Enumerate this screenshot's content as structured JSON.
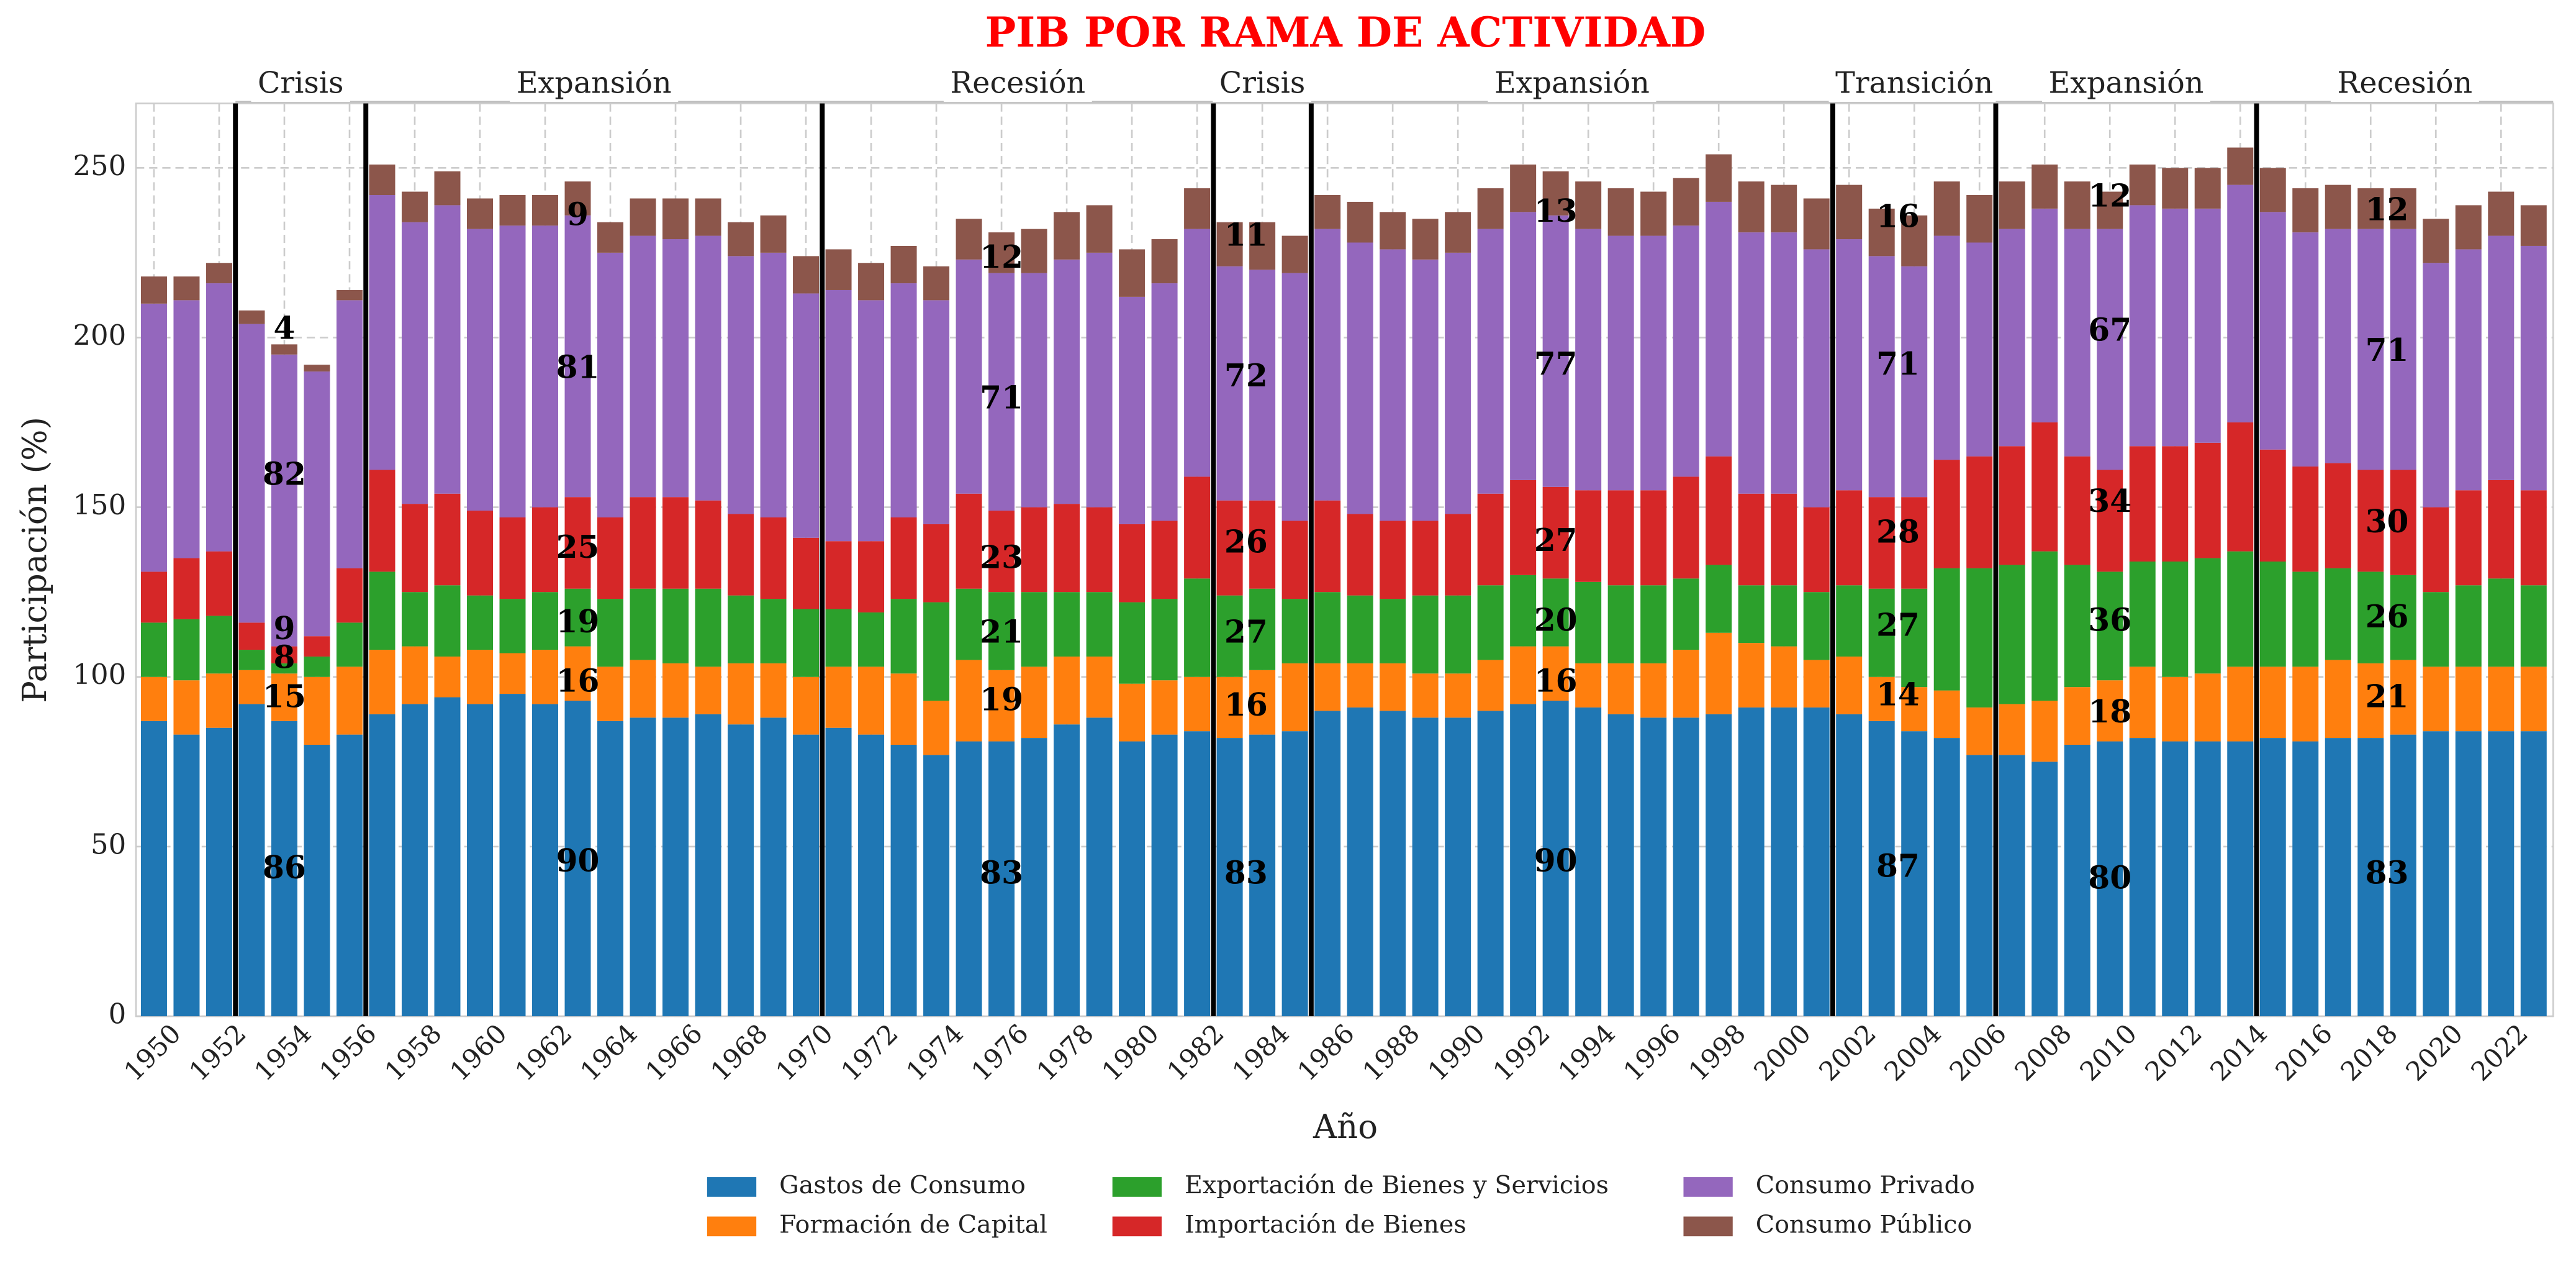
{
  "chart_data": {
    "type": "stacked_bar",
    "title": "PIB POR RAMA DE ACTIVIDAD",
    "x_label": "Año",
    "y_label": "Participación (%)",
    "x": [
      1950,
      1951,
      1952,
      1953,
      1954,
      1955,
      1956,
      1957,
      1958,
      1959,
      1960,
      1961,
      1962,
      1963,
      1964,
      1965,
      1966,
      1967,
      1968,
      1969,
      1970,
      1971,
      1972,
      1973,
      1974,
      1975,
      1976,
      1977,
      1978,
      1979,
      1980,
      1981,
      1982,
      1983,
      1984,
      1985,
      1986,
      1987,
      1988,
      1989,
      1990,
      1991,
      1992,
      1993,
      1994,
      1995,
      1996,
      1997,
      1998,
      1999,
      2000,
      2001,
      2002,
      2003,
      2004,
      2005,
      2006,
      2007,
      2008,
      2009,
      2010,
      2011,
      2012,
      2013,
      2014,
      2015,
      2016,
      2017,
      2018,
      2019,
      2020,
      2021,
      2022,
      2023
    ],
    "xlim": [
      1949.45,
      2023.6
    ],
    "xticks": [
      1950,
      1952,
      1954,
      1956,
      1958,
      1960,
      1962,
      1964,
      1966,
      1968,
      1970,
      1972,
      1974,
      1976,
      1978,
      1980,
      1982,
      1984,
      1986,
      1988,
      1990,
      1992,
      1994,
      1996,
      1998,
      2000,
      2002,
      2004,
      2006,
      2008,
      2010,
      2012,
      2014,
      2016,
      2018,
      2020,
      2022
    ],
    "ylim": [
      0,
      269
    ],
    "yticks": [
      0,
      50,
      100,
      150,
      200,
      250
    ],
    "grid": true,
    "legend": "lower center",
    "series": [
      {
        "name": "Gastos de Consumo",
        "color": "#1f77b4",
        "values": [
          87,
          83,
          85,
          92,
          87,
          80,
          83,
          89,
          92,
          94,
          92,
          95,
          92,
          93,
          87,
          88,
          88,
          89,
          86,
          88,
          83,
          85,
          83,
          80,
          77,
          81,
          81,
          82,
          86,
          88,
          81,
          83,
          84,
          82,
          83,
          84,
          90,
          91,
          90,
          88,
          88,
          90,
          92,
          93,
          91,
          89,
          88,
          88,
          89,
          91,
          91,
          91,
          89,
          87,
          84,
          82,
          77,
          77,
          75,
          80,
          81,
          82,
          81,
          81,
          81,
          82,
          81,
          82,
          82,
          83,
          84,
          84,
          84,
          84
        ]
      },
      {
        "name": "Formación de Capital",
        "color": "#ff7f0e",
        "values": [
          13,
          16,
          16,
          10,
          14,
          20,
          20,
          19,
          17,
          12,
          16,
          12,
          16,
          16,
          16,
          17,
          16,
          14,
          18,
          16,
          17,
          18,
          20,
          21,
          16,
          24,
          21,
          21,
          20,
          18,
          17,
          16,
          16,
          18,
          19,
          20,
          14,
          13,
          14,
          13,
          13,
          15,
          17,
          16,
          13,
          15,
          16,
          20,
          24,
          19,
          18,
          14,
          17,
          13,
          13,
          14,
          14,
          15,
          18,
          17,
          18,
          21,
          19,
          20,
          22,
          21,
          22,
          23,
          22,
          22,
          19,
          19,
          19,
          19
        ]
      },
      {
        "name": "Exportación de Bienes y Servicios",
        "color": "#2ca02c",
        "values": [
          16,
          18,
          17,
          6,
          3,
          6,
          13,
          23,
          16,
          21,
          16,
          16,
          17,
          17,
          20,
          21,
          22,
          23,
          20,
          19,
          20,
          17,
          16,
          22,
          29,
          21,
          23,
          22,
          19,
          19,
          24,
          24,
          29,
          24,
          24,
          19,
          21,
          20,
          19,
          23,
          23,
          22,
          21,
          20,
          24,
          23,
          23,
          21,
          20,
          17,
          18,
          20,
          21,
          26,
          29,
          36,
          41,
          41,
          44,
          36,
          32,
          31,
          34,
          34,
          34,
          31,
          28,
          27,
          27,
          25,
          22,
          24,
          26,
          24
        ]
      },
      {
        "name": "Importación de Bienes",
        "color": "#d62728",
        "values": [
          15,
          18,
          19,
          8,
          5,
          6,
          16,
          30,
          26,
          27,
          25,
          24,
          25,
          27,
          24,
          27,
          27,
          26,
          24,
          24,
          21,
          20,
          21,
          24,
          23,
          28,
          24,
          25,
          26,
          25,
          23,
          23,
          30,
          28,
          26,
          23,
          27,
          24,
          23,
          22,
          24,
          27,
          28,
          27,
          27,
          28,
          28,
          30,
          32,
          27,
          27,
          25,
          28,
          27,
          27,
          32,
          33,
          35,
          38,
          32,
          30,
          34,
          34,
          34,
          38,
          33,
          31,
          31,
          30,
          31,
          25,
          28,
          29,
          28
        ]
      },
      {
        "name": "Consumo Privado",
        "color": "#9467bd",
        "values": [
          79,
          76,
          79,
          88,
          86,
          78,
          79,
          81,
          83,
          85,
          83,
          86,
          83,
          83,
          78,
          77,
          76,
          78,
          76,
          78,
          72,
          74,
          71,
          69,
          66,
          69,
          70,
          69,
          72,
          75,
          67,
          70,
          73,
          69,
          68,
          73,
          80,
          80,
          80,
          77,
          77,
          78,
          79,
          80,
          77,
          75,
          75,
          74,
          75,
          77,
          77,
          76,
          74,
          71,
          68,
          66,
          63,
          64,
          63,
          67,
          71,
          71,
          70,
          69,
          70,
          70,
          69,
          69,
          71,
          71,
          72,
          71,
          72,
          72
        ]
      },
      {
        "name": "Consumo Público",
        "color": "#8c564b",
        "values": [
          8,
          7,
          6,
          4,
          3,
          2,
          3,
          9,
          9,
          10,
          9,
          9,
          9,
          10,
          9,
          11,
          12,
          11,
          10,
          11,
          11,
          12,
          11,
          11,
          10,
          12,
          12,
          13,
          14,
          14,
          14,
          13,
          12,
          13,
          14,
          11,
          10,
          12,
          11,
          12,
          12,
          12,
          14,
          13,
          14,
          14,
          13,
          14,
          14,
          15,
          14,
          15,
          16,
          14,
          15,
          16,
          14,
          14,
          13,
          14,
          11,
          12,
          12,
          12,
          11,
          13,
          13,
          13,
          12,
          12,
          13,
          13,
          13,
          12
        ]
      }
    ],
    "periods": [
      {
        "label": "Crisis",
        "start": 1952,
        "end": 1956,
        "values": [
          86,
          15,
          8,
          9,
          82,
          4
        ]
      },
      {
        "label": "Expansión",
        "start": 1956,
        "end": 1970,
        "values": [
          90,
          16,
          19,
          25,
          81,
          9
        ]
      },
      {
        "label": "Recesión",
        "start": 1970,
        "end": 1982,
        "values": [
          83,
          19,
          21,
          23,
          71,
          12
        ]
      },
      {
        "label": "Crisis",
        "start": 1982,
        "end": 1985,
        "values": [
          83,
          16,
          27,
          26,
          72,
          11
        ]
      },
      {
        "label": "Expansión",
        "start": 1985,
        "end": 2001,
        "values": [
          90,
          16,
          20,
          27,
          77,
          13
        ]
      },
      {
        "label": "Transición",
        "start": 2001,
        "end": 2006,
        "values": [
          87,
          14,
          27,
          28,
          71,
          16
        ]
      },
      {
        "label": "Expansión",
        "start": 2006,
        "end": 2014,
        "values": [
          80,
          18,
          36,
          34,
          67,
          12
        ]
      },
      {
        "label": "Recesión",
        "start": 2014,
        "end": 2023,
        "values": [
          83,
          21,
          26,
          30,
          71,
          12
        ]
      }
    ]
  }
}
